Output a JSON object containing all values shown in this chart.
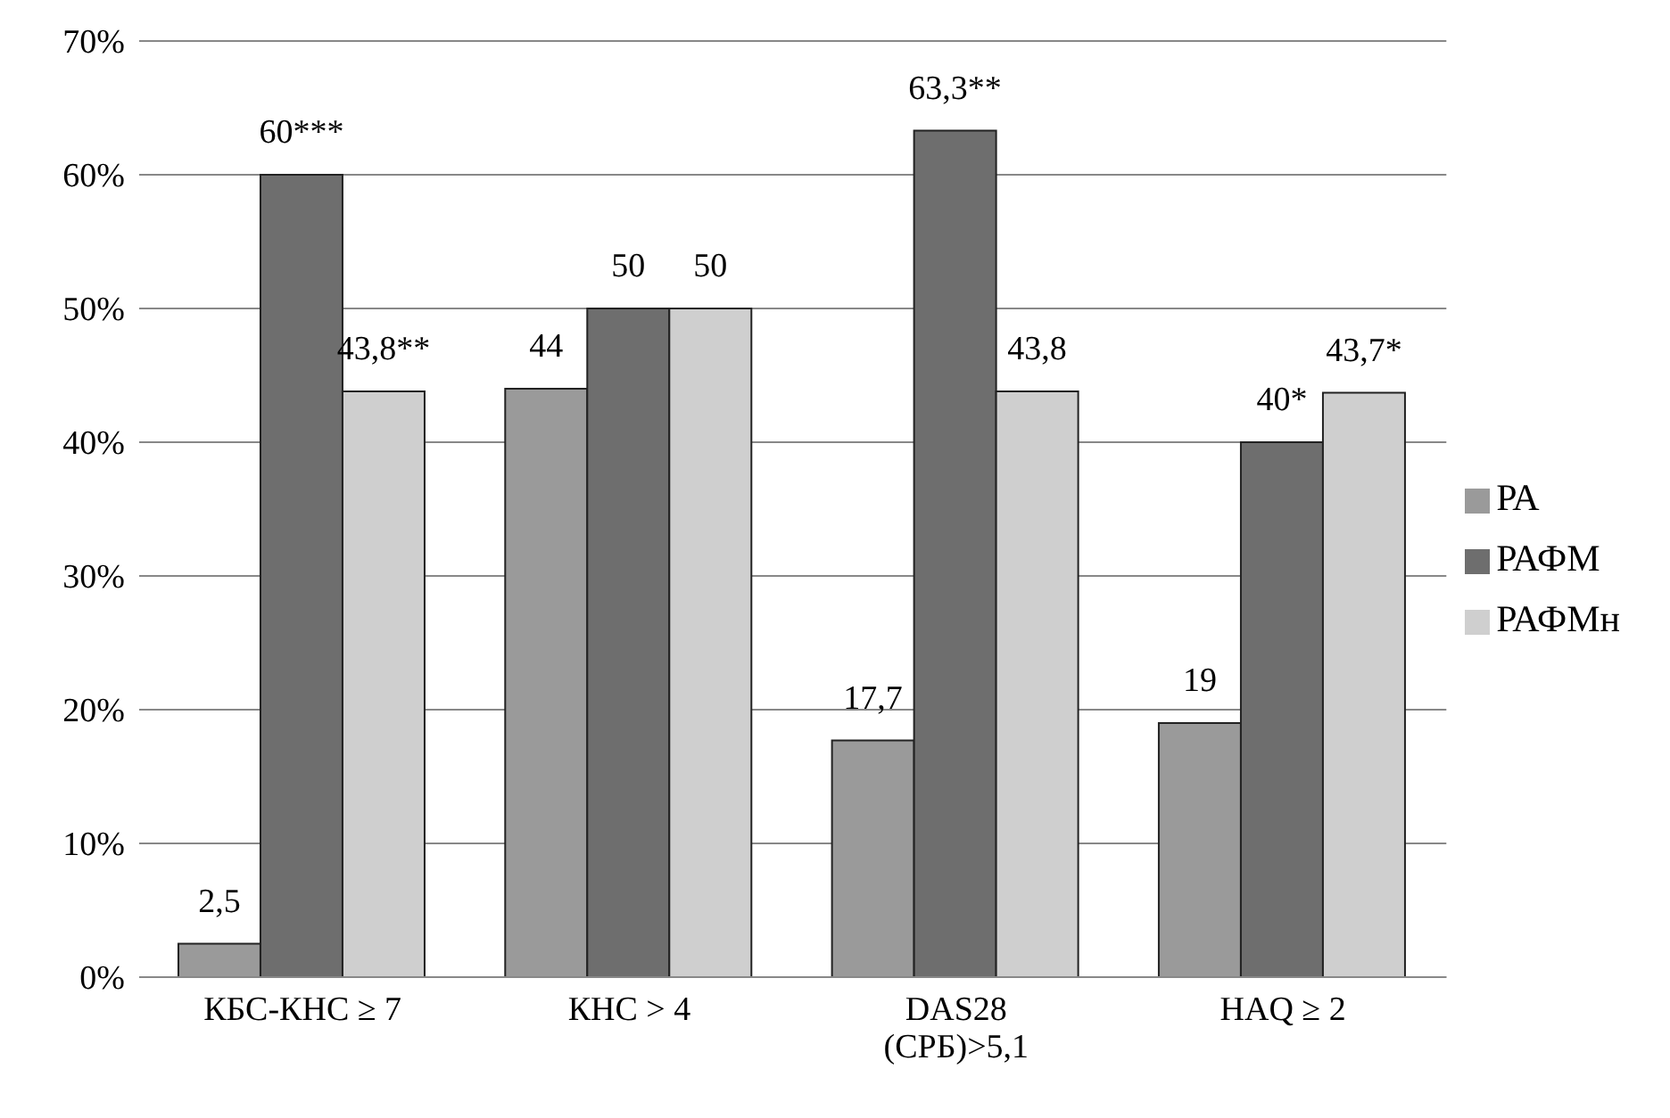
{
  "chart_data": {
    "type": "bar",
    "categories": [
      "КБС-КНС ≥ 7",
      "КНС > 4",
      "DAS28 (СРБ)>5,1",
      "HAQ ≥ 2"
    ],
    "series": [
      {
        "name": "РА",
        "color": "#9a9a9a",
        "values": [
          2.5,
          44,
          17.7,
          19
        ],
        "value_labels": [
          "2,5",
          "44",
          "17,7",
          "19"
        ]
      },
      {
        "name": "РАФМ",
        "color": "#6e6e6e",
        "values": [
          60,
          50,
          63.3,
          40
        ],
        "value_labels": [
          "60***",
          "50",
          "63,3**",
          "40*"
        ]
      },
      {
        "name": "РАФМн",
        "color": "#cfcfcf",
        "values": [
          43.8,
          50,
          43.8,
          43.7
        ],
        "value_labels": [
          "43,8**",
          "50",
          "43,8",
          "43,7*"
        ]
      }
    ],
    "ylim": [
      0,
      70
    ],
    "yticks": [
      {
        "value": 0,
        "label": "0%"
      },
      {
        "value": 10,
        "label": "10%"
      },
      {
        "value": 20,
        "label": "20%"
      },
      {
        "value": 30,
        "label": "30%"
      },
      {
        "value": 40,
        "label": "40%"
      },
      {
        "value": 50,
        "label": "50%"
      },
      {
        "value": 60,
        "label": "60%"
      },
      {
        "value": 70,
        "label": "70%"
      }
    ],
    "grid": "y",
    "legend": "right"
  }
}
